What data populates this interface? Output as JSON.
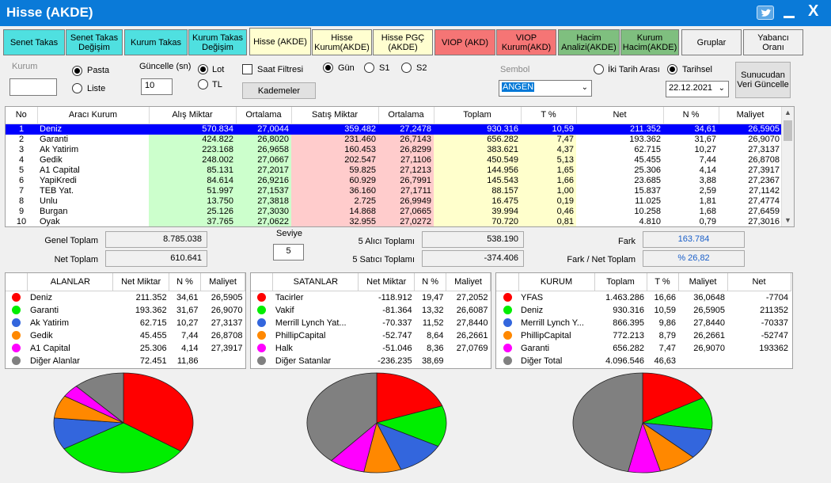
{
  "window": {
    "title": "Hisse (AKDE)"
  },
  "tabs": [
    {
      "label": "Senet Takas",
      "color": "cyan"
    },
    {
      "label": "Senet Takas Değişim",
      "color": "cyan"
    },
    {
      "label": "Kurum Takas",
      "color": "cyan"
    },
    {
      "label": "Kurum Takas Değişim",
      "color": "cyan"
    },
    {
      "label": "Hisse (AKDE)",
      "color": "yellow"
    },
    {
      "label": "Hisse Kurum(AKDE)",
      "color": "yellow"
    },
    {
      "label": "Hisse PGÇ (AKDE)",
      "color": "yellow"
    },
    {
      "label": "VIOP (AKD)",
      "color": "red"
    },
    {
      "label": "VIOP Kurum(AKD)",
      "color": "red"
    },
    {
      "label": "Hacim Analizi(AKDE)",
      "color": "green"
    },
    {
      "label": "Kurum Hacim(AKDE)",
      "color": "green"
    },
    {
      "label": "Gruplar",
      "color": "plain"
    },
    {
      "label": "Yabancı Oranı",
      "color": "plain"
    }
  ],
  "controls": {
    "kurum_label": "Kurum",
    "kurum_value": "",
    "pasta_label": "Pasta",
    "liste_label": "Liste",
    "guncelle_label": "Güncelle (sn)",
    "guncelle_value": "10",
    "lot_label": "Lot",
    "tl_label": "TL",
    "saat_filtresi_label": "Saat Filtresi",
    "gun_label": "Gün",
    "s1_label": "S1",
    "s2_label": "S2",
    "kademeler_label": "Kademeler",
    "sembol_label": "Sembol",
    "sembol_value": "ANGEN",
    "iki_tarih_label": "İki Tarih Arası",
    "tarihsel_label": "Tarihsel",
    "date_value": "22.12.2021",
    "sunucu_label": "Sunucudan Veri Güncelle"
  },
  "grid": {
    "headers": [
      "No",
      "Aracı Kurum",
      "Alış Miktar",
      "Ortalama",
      "Satış Miktar",
      "Ortalama",
      "Toplam",
      "T %",
      "Net",
      "N %",
      "Maliyet"
    ],
    "rows": [
      [
        "1",
        "Deniz",
        "570.834",
        "27,0044",
        "359.482",
        "27,2478",
        "930.316",
        "10,59",
        "211.352",
        "34,61",
        "26,5905"
      ],
      [
        "2",
        "Garanti",
        "424.822",
        "26,8020",
        "231.460",
        "26,7143",
        "656.282",
        "7,47",
        "193.362",
        "31,67",
        "26,9070"
      ],
      [
        "3",
        "Ak Yatirim",
        "223.168",
        "26,9658",
        "160.453",
        "26,8299",
        "383.621",
        "4,37",
        "62.715",
        "10,27",
        "27,3137"
      ],
      [
        "4",
        "Gedik",
        "248.002",
        "27,0667",
        "202.547",
        "27,1106",
        "450.549",
        "5,13",
        "45.455",
        "7,44",
        "26,8708"
      ],
      [
        "5",
        "A1 Capital",
        "85.131",
        "27,2017",
        "59.825",
        "27,1213",
        "144.956",
        "1,65",
        "25.306",
        "4,14",
        "27,3917"
      ],
      [
        "6",
        "YapiKredi",
        "84.614",
        "26,9216",
        "60.929",
        "26,7991",
        "145.543",
        "1,66",
        "23.685",
        "3,88",
        "27,2367"
      ],
      [
        "7",
        "TEB Yat.",
        "51.997",
        "27,1537",
        "36.160",
        "27,1711",
        "88.157",
        "1,00",
        "15.837",
        "2,59",
        "27,1142"
      ],
      [
        "8",
        "Unlu",
        "13.750",
        "27,3818",
        "2.725",
        "26,9949",
        "16.475",
        "0,19",
        "11.025",
        "1,81",
        "27,4774"
      ],
      [
        "9",
        "Burgan",
        "25.126",
        "27,3030",
        "14.868",
        "27,0665",
        "39.994",
        "0,46",
        "10.258",
        "1,68",
        "27,6459"
      ],
      [
        "10",
        "Oyak",
        "37.765",
        "27,0622",
        "32.955",
        "27,0272",
        "70.720",
        "0,81",
        "4.810",
        "0,79",
        "27,3016"
      ]
    ]
  },
  "summary": {
    "genel_toplam_label": "Genel Toplam",
    "genel_toplam": "8.785.038",
    "net_toplam_label": "Net Toplam",
    "net_toplam": "610.641",
    "seviye_label": "Seviye",
    "seviye_value": "5",
    "alici_label": "5  Alıcı Toplamı",
    "alici_value": "538.190",
    "satici_label": "5  Satıcı Toplamı",
    "satici_value": "-374.406",
    "fark_label": "Fark",
    "fark_value": "163.784",
    "fark_net_label": "Fark / Net Toplam",
    "fark_net_value": "% 26,82"
  },
  "alanlar": {
    "headers": [
      "ALANLAR",
      "Net Miktar",
      "N %",
      "Maliyet"
    ],
    "rows": [
      {
        "color": "#ff0000",
        "name": "Deniz",
        "net": "211.352",
        "pct": "34,61",
        "cost": "26,5905",
        "value": 211352
      },
      {
        "color": "#00ee00",
        "name": "Garanti",
        "net": "193.362",
        "pct": "31,67",
        "cost": "26,9070",
        "value": 193362
      },
      {
        "color": "#3366dd",
        "name": "Ak Yatirim",
        "net": "62.715",
        "pct": "10,27",
        "cost": "27,3137",
        "value": 62715
      },
      {
        "color": "#ff8800",
        "name": "Gedik",
        "net": "45.455",
        "pct": "7,44",
        "cost": "26,8708",
        "value": 45455
      },
      {
        "color": "#ff00ff",
        "name": "A1 Capital",
        "net": "25.306",
        "pct": "4,14",
        "cost": "27,3917",
        "value": 25306
      },
      {
        "color": "#808080",
        "name": "Diğer Alanlar",
        "net": "72.451",
        "pct": "11,86",
        "cost": "",
        "value": 72451
      }
    ]
  },
  "satanlar": {
    "headers": [
      "SATANLAR",
      "Net Miktar",
      "N %",
      "Maliyet"
    ],
    "rows": [
      {
        "color": "#ff0000",
        "name": "Tacirler",
        "net": "-118.912",
        "pct": "19,47",
        "cost": "27,2052",
        "value": 118912
      },
      {
        "color": "#00ee00",
        "name": "Vakif",
        "net": "-81.364",
        "pct": "13,32",
        "cost": "26,6087",
        "value": 81364
      },
      {
        "color": "#3366dd",
        "name": "Merrill Lynch Yat...",
        "net": "-70.337",
        "pct": "11,52",
        "cost": "27,8440",
        "value": 70337
      },
      {
        "color": "#ff8800",
        "name": "PhillipCapital",
        "net": "-52.747",
        "pct": "8,64",
        "cost": "26,2661",
        "value": 52747
      },
      {
        "color": "#ff00ff",
        "name": "Halk",
        "net": "-51.046",
        "pct": "8,36",
        "cost": "27,0769",
        "value": 51046
      },
      {
        "color": "#808080",
        "name": "Diğer Satanlar",
        "net": "-236.235",
        "pct": "38,69",
        "cost": "",
        "value": 236235
      }
    ]
  },
  "kurum": {
    "headers": [
      "KURUM",
      "Toplam",
      "T %",
      "Maliyet",
      "Net"
    ],
    "rows": [
      {
        "color": "#ff0000",
        "name": "YFAS",
        "total": "1.463.286",
        "pct": "16,66",
        "cost": "36,0648",
        "net": "-7704",
        "value": 1463286
      },
      {
        "color": "#00ee00",
        "name": "Deniz",
        "total": "930.316",
        "pct": "10,59",
        "cost": "26,5905",
        "net": "211352",
        "value": 930316
      },
      {
        "color": "#3366dd",
        "name": "Merrill Lynch Y...",
        "total": "866.395",
        "pct": "9,86",
        "cost": "27,8440",
        "net": "-70337",
        "value": 866395
      },
      {
        "color": "#ff8800",
        "name": "PhillipCapital",
        "total": "772.213",
        "pct": "8,79",
        "cost": "26,2661",
        "net": "-52747",
        "value": 772213
      },
      {
        "color": "#ff00ff",
        "name": "Garanti",
        "total": "656.282",
        "pct": "7,47",
        "cost": "26,9070",
        "net": "193362",
        "value": 656282
      },
      {
        "color": "#808080",
        "name": "Diğer Total",
        "total": "4.096.546",
        "pct": "46,63",
        "cost": "",
        "net": "",
        "value": 4096546
      }
    ]
  }
}
